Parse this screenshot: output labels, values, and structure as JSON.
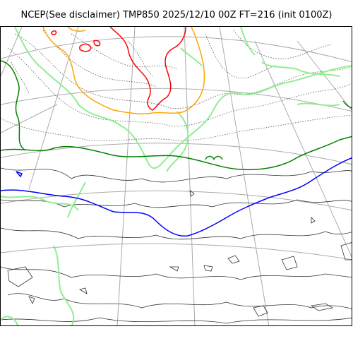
{
  "map": {
    "title": "NCEP(See disclaimer) TMP850 2025/12/10 00Z FT=216 (init 0100Z)",
    "colors": {
      "background": "#ffffff",
      "graticule": "#aaaaaa",
      "coastline": "#333333",
      "isotherm_dotted": "#555555",
      "isotherm_lightgreen": "#90ee90",
      "isotherm_green": "#008000",
      "isotherm_blue": "#0000ff",
      "isotherm_orange": "#ffa500",
      "isotherm_red": "#ff0000"
    }
  }
}
